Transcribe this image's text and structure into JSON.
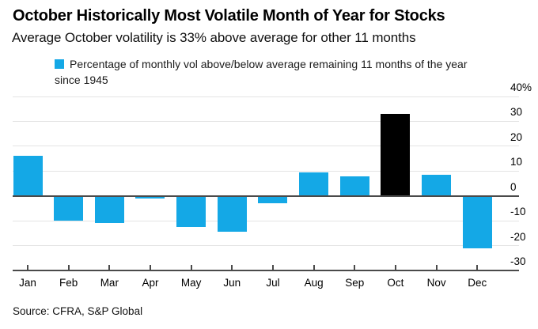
{
  "header": {
    "title": "October Historically Most Volatile Month of Year for Stocks",
    "subtitle": "Average October volatility is 33% above average for other 11 months"
  },
  "legend": {
    "label": "Percentage of monthly vol above/below average remaining 11 months of the year since 1945",
    "swatch_color": "#14A8E6"
  },
  "chart_data": {
    "type": "bar",
    "title": "October Historically Most Volatile Month of Year for Stocks",
    "subtitle": "Average October volatility is 33% above average for other 11 months",
    "categories": [
      "Jan",
      "Feb",
      "Mar",
      "Apr",
      "May",
      "Jun",
      "Jul",
      "Aug",
      "Sep",
      "Oct",
      "Nov",
      "Dec"
    ],
    "values": [
      16,
      -10,
      -11,
      -1,
      -12.4,
      -14.3,
      -3.1,
      9.4,
      8,
      33,
      8.5,
      -21.2
    ],
    "unit": "%",
    "ylim": [
      -30,
      40
    ],
    "yticks": [
      40,
      30,
      20,
      10,
      0,
      -10,
      -20,
      -30
    ],
    "ytick_labels": [
      "40%",
      "30",
      "20",
      "10",
      "0",
      "-10",
      "-20",
      "-30"
    ],
    "legend_entry": "Percentage of monthly vol above/below average remaining 11 months of the year since 1945",
    "bar_color": "#14A8E6",
    "highlight_color": "#000000",
    "highlight_index": 9,
    "grid": "horizontal",
    "ytick_side": "right"
  },
  "footer": {
    "source": "Source: CFRA, S&P Global"
  },
  "colors": {
    "accent_blue": "#14A8E6",
    "highlight_black": "#000000",
    "axis_dark": "#4a4a4a",
    "gridline": "#e4e4e4",
    "background": "#ffffff"
  }
}
